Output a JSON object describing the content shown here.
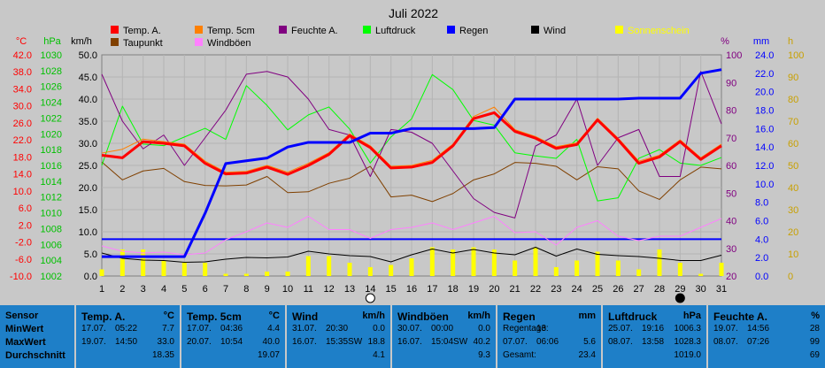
{
  "chart_data": {
    "type": "line",
    "title": "Juli 2022",
    "x": [
      1,
      2,
      3,
      4,
      5,
      6,
      7,
      8,
      9,
      10,
      11,
      12,
      13,
      14,
      15,
      16,
      17,
      18,
      19,
      20,
      21,
      22,
      23,
      24,
      25,
      26,
      27,
      28,
      29,
      30,
      31
    ],
    "axes": {
      "celsius": {
        "label": "°C",
        "ticks": [
          "42.0",
          "38.0",
          "34.0",
          "30.0",
          "26.0",
          "22.0",
          "18.0",
          "14.0",
          "10.0",
          "6.0",
          "2.0",
          "-2.0",
          "-6.0",
          "-10.0"
        ],
        "range": [
          -10,
          42
        ]
      },
      "hpa": {
        "label": "hPa",
        "ticks": [
          "1030",
          "1028",
          "1026",
          "1024",
          "1022",
          "1020",
          "1018",
          "1016",
          "1014",
          "1012",
          "1010",
          "1008",
          "1006",
          "1004",
          "1002"
        ],
        "range": [
          1002,
          1030
        ]
      },
      "kmh": {
        "label": "km/h",
        "ticks": [
          "50.0",
          "45.0",
          "40.0",
          "35.0",
          "30.0",
          "25.0",
          "20.0",
          "15.0",
          "10.0",
          "5.0",
          "0.0"
        ],
        "range": [
          0,
          50
        ]
      },
      "percent": {
        "label": "%",
        "ticks": [
          "100",
          "90",
          "80",
          "70",
          "60",
          "50",
          "40",
          "30",
          "20"
        ],
        "range": [
          20,
          100
        ]
      },
      "mm": {
        "label": "mm",
        "ticks": [
          "24.0",
          "22.0",
          "20.0",
          "18.0",
          "16.0",
          "14.0",
          "12.0",
          "10.0",
          "8.0",
          "6.0",
          "4.0",
          "2.0",
          "0.0"
        ],
        "range": [
          0,
          24
        ]
      },
      "hours": {
        "label": "h",
        "ticks": [
          "100",
          "90",
          "80",
          "70",
          "60",
          "50",
          "40",
          "30",
          "20",
          "10",
          "0"
        ],
        "range": [
          0,
          100
        ]
      }
    },
    "legend": [
      {
        "name": "Temp. A.",
        "color": "#ff0000"
      },
      {
        "name": "Temp. 5cm",
        "color": "#ff8000"
      },
      {
        "name": "Feuchte A.",
        "color": "#800080"
      },
      {
        "name": "Luftdruck",
        "color": "#00ff00"
      },
      {
        "name": "Regen",
        "color": "#0000ff"
      },
      {
        "name": "Wind",
        "color": "#000000"
      },
      {
        "name": "Sonnenschein",
        "color": "#ffff00"
      },
      {
        "name": "Taupunkt",
        "color": "#804000"
      },
      {
        "name": "Windböen",
        "color": "#ff80ff"
      }
    ],
    "series": [
      {
        "name": "Temp. A.",
        "axis": "celsius",
        "color": "#ff0000",
        "values": [
          18.4,
          17.8,
          21.6,
          21.2,
          20.6,
          16.5,
          14.0,
          14.2,
          15.6,
          13.9,
          16.0,
          18.6,
          23.0,
          20.2,
          15.4,
          15.6,
          16.7,
          20.6,
          27.0,
          28.4,
          24.0,
          22.4,
          20.0,
          20.9,
          26.7,
          22.0,
          16.5,
          18.0,
          21.6,
          17.4,
          20.6
        ]
      },
      {
        "name": "Temp. 5cm",
        "axis": "celsius",
        "color": "#ff8000",
        "values": [
          18.9,
          19.8,
          22.2,
          21.6,
          21.0,
          17.0,
          14.4,
          14.6,
          16.0,
          14.4,
          16.5,
          19.0,
          23.4,
          20.6,
          15.8,
          16.0,
          17.2,
          21.0,
          27.5,
          29.7,
          24.4,
          22.8,
          20.4,
          21.3,
          27.1,
          22.4,
          17.0,
          18.4,
          22.0,
          17.8,
          21.0
        ]
      },
      {
        "name": "Taupunkt",
        "axis": "celsius",
        "color": "#804000",
        "values": [
          16.8,
          12.6,
          14.7,
          15.3,
          12.2,
          11.3,
          11.2,
          11.4,
          13.4,
          9.6,
          9.8,
          11.8,
          13.0,
          15.8,
          8.6,
          9.0,
          7.5,
          9.4,
          12.6,
          14.0,
          16.7,
          16.5,
          15.8,
          12.6,
          15.7,
          15.2,
          10.0,
          8.0,
          12.6,
          15.6,
          15.2
        ]
      },
      {
        "name": "Feuchte A.",
        "axis": "percent",
        "color": "#800080",
        "values": [
          93,
          76,
          66,
          71,
          60,
          70,
          80,
          93,
          94,
          92,
          84,
          73,
          71,
          56,
          73,
          72,
          68,
          58,
          48,
          43,
          41,
          67,
          71,
          84,
          60,
          70,
          73,
          56,
          56,
          94,
          75
        ]
      },
      {
        "name": "Luftdruck",
        "axis": "hpa",
        "color": "#00ff00",
        "values": [
          1016.0,
          1023.5,
          1018.7,
          1018.5,
          1019.6,
          1020.7,
          1019.3,
          1026.1,
          1023.6,
          1020.5,
          1022.4,
          1023.4,
          1020.6,
          1016.3,
          1019.6,
          1021.9,
          1027.5,
          1025.6,
          1021.7,
          1021.1,
          1017.6,
          1017.2,
          1016.9,
          1019.3,
          1011.5,
          1011.9,
          1016.9,
          1018.0,
          1016.3,
          1016.0,
          1017.0
        ]
      },
      {
        "name": "Regen",
        "axis": "mm",
        "color": "#0000ff",
        "values": [
          2.1,
          2.1,
          2.1,
          2.1,
          2.1,
          6.8,
          12.2,
          12.5,
          12.8,
          14.0,
          14.5,
          14.5,
          14.5,
          15.5,
          15.5,
          16.0,
          16.0,
          16.0,
          16.0,
          16.1,
          19.2,
          19.2,
          19.2,
          19.2,
          19.2,
          19.2,
          19.3,
          19.3,
          19.3,
          22.0,
          22.4
        ]
      },
      {
        "name": "Wind",
        "axis": "kmh",
        "color": "#000000",
        "values": [
          5.2,
          4.0,
          3.6,
          3.5,
          3.1,
          3.2,
          3.8,
          4.2,
          4.1,
          4.3,
          5.6,
          5.0,
          4.6,
          4.4,
          3.2,
          4.8,
          6.1,
          5.2,
          6.0,
          5.2,
          4.8,
          6.5,
          4.5,
          6.1,
          4.9,
          4.6,
          4.4,
          4.0,
          3.5,
          3.5,
          4.7
        ]
      },
      {
        "name": "Windböen",
        "axis": "kmh",
        "color": "#ff80ff",
        "values": [
          6.8,
          5.6,
          5.2,
          5.4,
          4.8,
          5.2,
          8.2,
          10.0,
          12.0,
          11.0,
          13.5,
          10.5,
          10.5,
          8.5,
          10.5,
          11.0,
          12.0,
          10.5,
          12.0,
          13.5,
          9.8,
          10.0,
          7.0,
          11.0,
          12.5,
          9.0,
          8.0,
          9.0,
          9.0,
          11.0,
          13.0
        ]
      },
      {
        "name": "Sonnenschein",
        "axis": "hours",
        "color": "#ffff00",
        "style": "bars",
        "values": [
          3,
          12,
          12,
          7,
          6,
          6,
          1,
          1,
          2,
          2,
          9,
          9,
          6,
          4,
          5,
          8,
          13,
          12,
          13,
          12,
          7,
          13,
          4,
          7,
          11,
          7,
          3,
          12,
          6,
          1,
          6
        ]
      }
    ],
    "constant_line": {
      "axis": "mm",
      "value": 4.0,
      "color": "#0000ff"
    },
    "markers": [
      {
        "day": 14,
        "symbol": "new-moon-outline"
      },
      {
        "day": 29,
        "symbol": "moon-filled"
      }
    ]
  },
  "stats": {
    "row_labels": [
      "Sensor",
      "MinWert",
      "MaxWert",
      "Durchschnitt"
    ],
    "panels": [
      {
        "title": "Temp. A.",
        "unit": "°C",
        "min": {
          "date": "17.07.",
          "time": "05:22",
          "value": "7.7"
        },
        "max": {
          "date": "19.07.",
          "time": "14:50",
          "value": "33.0"
        },
        "avg": "18.35"
      },
      {
        "title": "Temp. 5cm",
        "unit": "°C",
        "min": {
          "date": "17.07.",
          "time": "04:36",
          "value": "4.4"
        },
        "max": {
          "date": "20.07.",
          "time": "10:54",
          "value": "40.0"
        },
        "avg": "19.07"
      },
      {
        "title": "Wind",
        "unit": "km/h",
        "min": {
          "date": "31.07.",
          "time": "20:30",
          "value": "0.0"
        },
        "max": {
          "date": "16.07.",
          "time": "15:35SW",
          "value": "18.8"
        },
        "avg": "4.1"
      },
      {
        "title": "Windböen",
        "unit": "km/h",
        "min": {
          "date": "30.07.",
          "time": "00:00",
          "value": "0.0"
        },
        "max": {
          "date": "16.07.",
          "time": "15:04SW",
          "value": "40.2"
        },
        "avg": "9.3"
      },
      {
        "title": "Regen",
        "unit": "mm",
        "min": {
          "date": "Regentage:",
          "time": "13",
          "value": ""
        },
        "max": {
          "date": "07.07.",
          "time": "06:06",
          "value": "5.6"
        },
        "avg_label": "Gesamt:",
        "avg": "23.4"
      },
      {
        "title": "Luftdruck",
        "unit": "hPa",
        "min": {
          "date": "25.07.",
          "time": "19:16",
          "value": "1006.3"
        },
        "max": {
          "date": "08.07.",
          "time": "13:58",
          "value": "1028.3"
        },
        "avg": "1019.0"
      },
      {
        "title": "Feuchte A.",
        "unit": "%",
        "min": {
          "date": "19.07.",
          "time": "14:56",
          "value": "28"
        },
        "max": {
          "date": "08.07.",
          "time": "07:26",
          "value": "99"
        },
        "avg": "69"
      }
    ]
  }
}
